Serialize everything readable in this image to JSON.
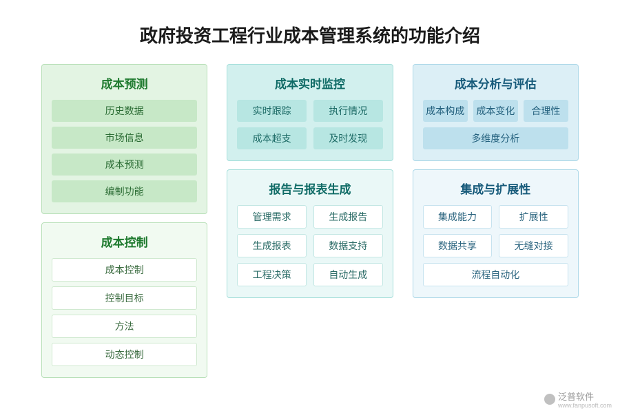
{
  "title": "政府投资工程行业成本管理系统的功能介绍",
  "columns": [
    {
      "panels": [
        {
          "title": "成本预测",
          "layout": "1col",
          "styleClass": "c1-a",
          "items": [
            "历史数据",
            "市场信息",
            "成本预测",
            "编制功能"
          ]
        },
        {
          "title": "成本控制",
          "layout": "1col",
          "styleClass": "c1-b",
          "items": [
            "成本控制",
            "控制目标",
            "方法",
            "动态控制"
          ]
        }
      ]
    },
    {
      "panels": [
        {
          "title": "成本实时监控",
          "layout": "2col",
          "styleClass": "c2-a",
          "items": [
            "实时跟踪",
            "执行情况",
            "成本超支",
            "及时发现"
          ]
        },
        {
          "title": "报告与报表生成",
          "layout": "2col",
          "styleClass": "c2-b",
          "items": [
            "管理需求",
            "生成报告",
            "生成报表",
            "数据支持",
            "工程决策",
            "自动生成"
          ]
        }
      ]
    },
    {
      "panels": [
        {
          "title": "成本分析与评估",
          "layout": "3col",
          "styleClass": "c3-a",
          "items": [
            "成本构成",
            "成本变化",
            "合理性",
            "多维度分析"
          ],
          "spans": {
            "3": "span-all-3"
          }
        },
        {
          "title": "集成与扩展性",
          "layout": "2col",
          "styleClass": "c3-b",
          "items": [
            "集成能力",
            "扩展性",
            "数据共享",
            "无缝对接",
            "流程自动化"
          ],
          "spans": {
            "4": "span-all-2"
          }
        }
      ]
    }
  ],
  "watermark": {
    "text": "泛普软件",
    "sub": "www.fanpusoft.com"
  },
  "colors": {
    "background": "#ffffff",
    "title_color": "#1a1a1a",
    "col1_panelA_bg": "#e3f4e3",
    "col1_panelA_border": "#b9e0b9",
    "col1_panelA_title": "#1e7a2e",
    "col1_panelA_item_bg": "#c7e8c7",
    "col1_panelB_bg": "#f1faf1",
    "col1_panelB_item_bg": "#ffffff",
    "col2_panelA_bg": "#d2f0ee",
    "col2_panelA_border": "#a6dfdb",
    "col2_panelA_title": "#0f6b66",
    "col2_panelA_item_bg": "#b7e6e2",
    "col2_panelB_bg": "#eaf8f7",
    "col2_panelB_item_bg": "#ffffff",
    "col3_panelA_bg": "#dceff6",
    "col3_panelA_border": "#add8e8",
    "col3_panelA_title": "#165a7a",
    "col3_panelA_item_bg": "#bde0ed",
    "col3_panelB_bg": "#eef7fb",
    "col3_panelB_item_bg": "#ffffff"
  },
  "typography": {
    "title_fontsize": 26,
    "panel_title_fontsize": 17,
    "item_fontsize": 14
  }
}
